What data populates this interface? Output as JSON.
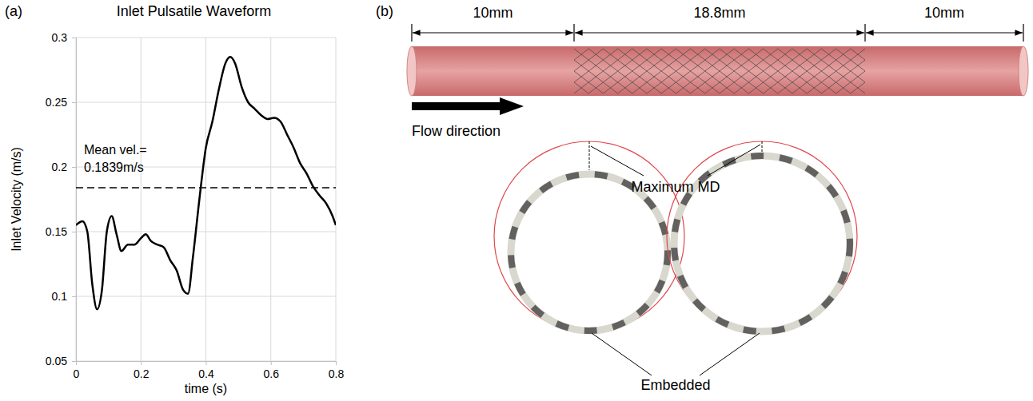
{
  "chart_data": {
    "type": "line",
    "panel_label": "(a)",
    "title": "Inlet Pulsatile Waveform",
    "x_label": "time (s)",
    "y_label": "Inlet Velocity (m/s)",
    "x": [
      0,
      0.02,
      0.035,
      0.05,
      0.065,
      0.08,
      0.095,
      0.11,
      0.125,
      0.14,
      0.16,
      0.18,
      0.2,
      0.215,
      0.23,
      0.25,
      0.27,
      0.29,
      0.31,
      0.33,
      0.345,
      0.36,
      0.38,
      0.4,
      0.42,
      0.44,
      0.46,
      0.475,
      0.49,
      0.51,
      0.53,
      0.55,
      0.57,
      0.59,
      0.61,
      0.63,
      0.65,
      0.67,
      0.69,
      0.71,
      0.73,
      0.75,
      0.77,
      0.79,
      0.8
    ],
    "values": [
      0.155,
      0.158,
      0.15,
      0.11,
      0.09,
      0.105,
      0.15,
      0.162,
      0.148,
      0.135,
      0.14,
      0.14,
      0.145,
      0.148,
      0.143,
      0.14,
      0.138,
      0.128,
      0.12,
      0.105,
      0.102,
      0.13,
      0.175,
      0.215,
      0.235,
      0.26,
      0.28,
      0.285,
      0.28,
      0.262,
      0.25,
      0.245,
      0.24,
      0.237,
      0.238,
      0.235,
      0.225,
      0.215,
      0.203,
      0.195,
      0.185,
      0.178,
      0.172,
      0.162,
      0.155
    ],
    "color": "#000000",
    "mean_value": 0.1839,
    "annotations": [
      "Mean vel.=",
      "0.1839m/s"
    ],
    "xlim": [
      0,
      0.8
    ],
    "xticks": [
      0,
      0.2,
      0.4,
      0.6,
      0.8
    ],
    "ylim": [
      0.05,
      0.3
    ],
    "yticks": [
      0.05,
      0.1,
      0.15,
      0.2,
      0.25,
      0.3
    ],
    "grid": true
  },
  "diagram": {
    "panel_label": "(b)",
    "dimensions": [
      "10mm",
      "18.8mm",
      "10mm"
    ],
    "flow_label": "Flow direction",
    "callouts": [
      "Maximum MD",
      "Embedded"
    ]
  }
}
